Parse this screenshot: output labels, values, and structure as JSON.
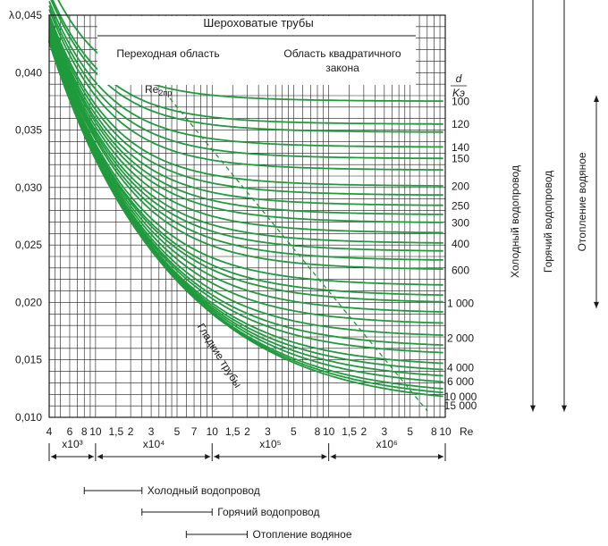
{
  "chart_data": {
    "type": "line",
    "y_axis_symbol": "λ",
    "x_axis_symbol": "Re",
    "x_scale": "log",
    "xlim": [
      4000,
      10000000
    ],
    "ylim": [
      0.01,
      0.045
    ],
    "y_ticks": [
      {
        "value": 0.045,
        "label": "0,045"
      },
      {
        "value": 0.04,
        "label": "0,040"
      },
      {
        "value": 0.035,
        "label": "0,035"
      },
      {
        "value": 0.03,
        "label": "0,030"
      },
      {
        "value": 0.025,
        "label": "0,025"
      },
      {
        "value": 0.02,
        "label": "0,020"
      },
      {
        "value": 0.015,
        "label": "0,015"
      },
      {
        "value": 0.01,
        "label": "0,010"
      }
    ],
    "x_ticks": [
      {
        "value": 4000,
        "label": "4"
      },
      {
        "value": 6000,
        "label": "6"
      },
      {
        "value": 8000,
        "label": "8"
      },
      {
        "value": 10000,
        "label": "10"
      },
      {
        "value": 15000,
        "label": "1,5"
      },
      {
        "value": 20000,
        "label": "2"
      },
      {
        "value": 30000,
        "label": "3"
      },
      {
        "value": 50000,
        "label": "5"
      },
      {
        "value": 70000,
        "label": "7"
      },
      {
        "value": 100000,
        "label": "10"
      },
      {
        "value": 150000,
        "label": "1,5"
      },
      {
        "value": 200000,
        "label": "2"
      },
      {
        "value": 300000,
        "label": "3"
      },
      {
        "value": 500000,
        "label": "5"
      },
      {
        "value": 800000,
        "label": "8"
      },
      {
        "value": 1000000,
        "label": "10"
      },
      {
        "value": 1500000,
        "label": "1,5"
      },
      {
        "value": 2000000,
        "label": "2"
      },
      {
        "value": 3000000,
        "label": "3"
      },
      {
        "value": 5000000,
        "label": "5"
      },
      {
        "value": 8000000,
        "label": "8"
      },
      {
        "value": 10000000,
        "label": "10"
      }
    ],
    "multipliers": [
      {
        "label": "x10³",
        "from": 4000,
        "to": 10000
      },
      {
        "label": "x10⁴",
        "from": 10000,
        "to": 100000
      },
      {
        "label": "x10⁵",
        "from": 100000,
        "to": 1000000
      },
      {
        "label": "x10⁶",
        "from": 1000000,
        "to": 10000000
      }
    ],
    "header_title": "Шероховатые трубы",
    "region_transition": "Переходная область",
    "region_quadratic": "Область квадратичного закона",
    "re2_label": "Re",
    "re2_sub": "2пр",
    "smooth_label": "Гладкие трубы",
    "ratio_label_num": "d",
    "ratio_label_den": "Kэ",
    "series_color": "#1f9a3c",
    "series": [
      {
        "name": "100",
        "lambda_asymptote": 0.0375
      },
      {
        "name": "120",
        "lambda_asymptote": 0.0355
      },
      {
        "name": "140",
        "lambda_asymptote": 0.0335
      },
      {
        "name": "150",
        "lambda_asymptote": 0.0325
      },
      {
        "name": "200",
        "lambda_asymptote": 0.0301
      },
      {
        "name": "250",
        "lambda_asymptote": 0.0284
      },
      {
        "name": "300",
        "lambda_asymptote": 0.0269
      },
      {
        "name": "400",
        "lambda_asymptote": 0.0251
      },
      {
        "name": "600",
        "lambda_asymptote": 0.0228
      },
      {
        "name": "1 000",
        "lambda_asymptote": 0.0199
      },
      {
        "name": "2 000",
        "lambda_asymptote": 0.0169
      },
      {
        "name": "4 000",
        "lambda_asymptote": 0.0143
      },
      {
        "name": "6 000",
        "lambda_asymptote": 0.0131
      },
      {
        "name": "10 000",
        "lambda_asymptote": 0.0118
      },
      {
        "name": "15 000",
        "lambda_asymptote": 0.011
      }
    ],
    "extra_lines": [
      {
        "lambda_asymptote": 0.0348
      },
      {
        "lambda_asymptote": 0.0315
      },
      {
        "lambda_asymptote": 0.0293
      },
      {
        "lambda_asymptote": 0.0276
      },
      {
        "lambda_asymptote": 0.026
      },
      {
        "lambda_asymptote": 0.0244
      },
      {
        "lambda_asymptote": 0.0236
      },
      {
        "lambda_asymptote": 0.0214
      },
      {
        "lambda_asymptote": 0.0205
      },
      {
        "lambda_asymptote": 0.019
      },
      {
        "lambda_asymptote": 0.018
      },
      {
        "lambda_asymptote": 0.016
      },
      {
        "lambda_asymptote": 0.0153
      },
      {
        "lambda_asymptote": 0.0137
      },
      {
        "lambda_asymptote": 0.0125
      },
      {
        "lambda_asymptote": 0.0114
      }
    ],
    "side_ranges": [
      {
        "label": "Холодный водопровод",
        "lambda_from": 0.0468,
        "lambda_to": 0.0105
      },
      {
        "label": "Горячий водопровод",
        "lambda_from": 0.0468,
        "lambda_to": 0.0105
      },
      {
        "label": "Отопление водяное",
        "lambda_from": 0.038,
        "lambda_to": 0.0195
      }
    ],
    "bottom_ranges": [
      {
        "label": "Холодный водопровод",
        "re_from": 8000,
        "re_to": 25000
      },
      {
        "label": "Горячий водопровод",
        "re_from": 25000,
        "re_to": 100000
      },
      {
        "label": "Отопление водяное",
        "re_from": 60000,
        "re_to": 200000
      }
    ]
  }
}
